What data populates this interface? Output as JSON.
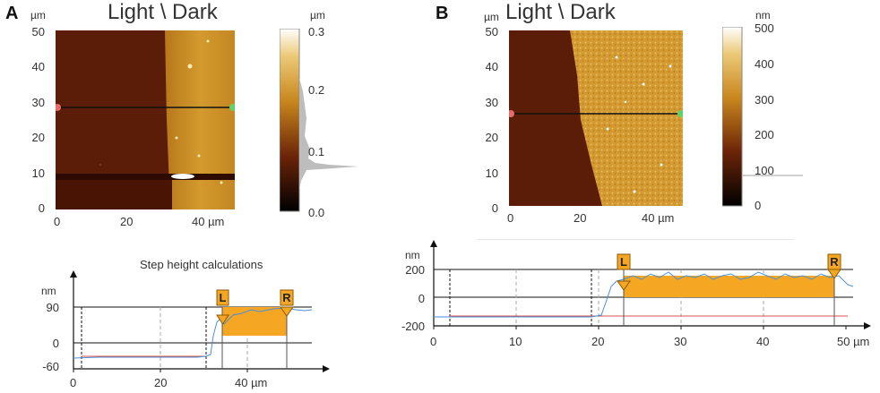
{
  "panels": [
    {
      "letter": "A",
      "title": "Light \\ Dark",
      "image_unit": "µm",
      "image_y_ticks": [
        "50",
        "40",
        "30",
        "20",
        "10",
        "0"
      ],
      "image_x_ticks": [
        "0",
        "20",
        "40 µm"
      ],
      "colorbar_unit": "µm",
      "colorbar_ticks": [
        "0.3",
        "0.2",
        "0.1",
        "0.0"
      ],
      "profile_title": "Step height calculations",
      "profile_unit": "nm",
      "profile_y_ticks": [
        "90",
        "0",
        "-60"
      ],
      "profile_x_ticks": [
        "0",
        "20",
        "40 µm"
      ],
      "marker_left": "L",
      "marker_right": "R"
    },
    {
      "letter": "B",
      "title": "Light \\ Dark",
      "image_unit": "µm",
      "image_y_ticks": [
        "50",
        "40",
        "30",
        "20",
        "10",
        "0"
      ],
      "image_x_ticks": [
        "0",
        "20",
        "40 µm"
      ],
      "colorbar_unit": "nm",
      "colorbar_ticks": [
        "500",
        "400",
        "300",
        "200",
        "100",
        "0"
      ],
      "profile_unit": "nm",
      "profile_y_ticks": [
        "200",
        "0",
        "-200"
      ],
      "profile_x_ticks": [
        "0",
        "10",
        "20",
        "30",
        "40",
        "50 µm"
      ],
      "marker_left": "L",
      "marker_right": "R"
    }
  ],
  "colors": {
    "dark_side": "#5a1a07",
    "light_side": "#c8861c",
    "scan_line": "#111111",
    "marker_fill": "#f5a623",
    "profile_line": "#4a90d9",
    "baseline_line": "#d9534f"
  }
}
